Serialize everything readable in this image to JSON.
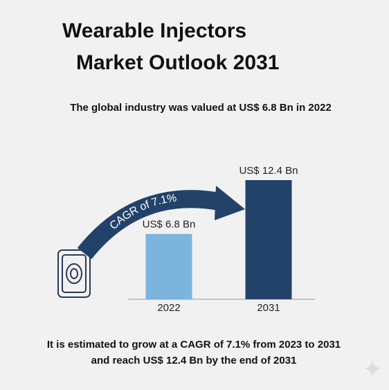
{
  "chart_data": {
    "type": "bar",
    "title": [
      "Wearable Injectors",
      "Market Outlook 2031"
    ],
    "subtitle": "The global industry was valued at US$ 6.8 Bn in 2022",
    "categories": [
      "2022",
      "2031"
    ],
    "values": [
      6.8,
      12.4
    ],
    "value_labels": [
      "US$ 6.8 Bn",
      "US$ 12.4 Bn"
    ],
    "colors": [
      "#7bb5dd",
      "#22426a"
    ],
    "annotation": "CAGR of 7.1%",
    "footnote": "It is estimated to grow at a CAGR of 7.1% from 2023 to 2031 and reach US$ 12.4 Bn by the end of 2031"
  }
}
